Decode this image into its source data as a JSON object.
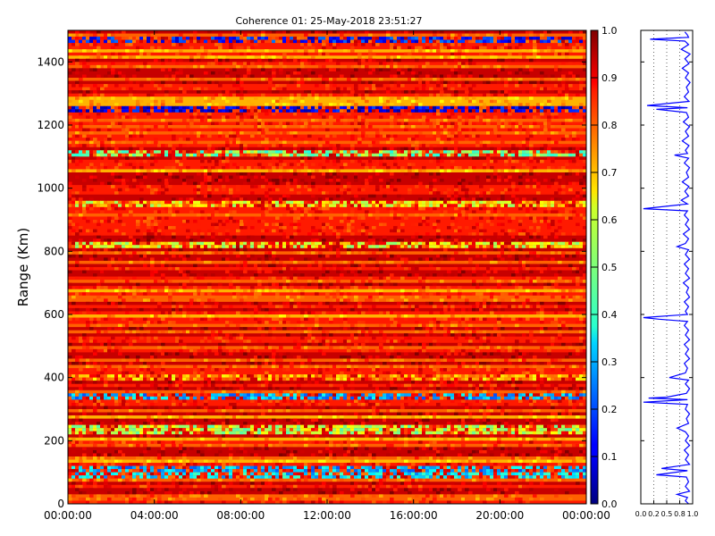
{
  "chart_data": [
    {
      "type": "heatmap",
      "title": "Coherence 01: 25-May-2018 23:51:27",
      "xlabel": "",
      "ylabel": "Range (Km)",
      "x_tick_labels": [
        "00:00:00",
        "04:00:00",
        "08:00:00",
        "12:00:00",
        "16:00:00",
        "20:00:00",
        "00:00:00"
      ],
      "x_range_hours": [
        0,
        24
      ],
      "y_ticks": [
        0,
        200,
        400,
        600,
        800,
        1000,
        1200,
        1400
      ],
      "y_range": [
        0,
        1500
      ],
      "colormap": "jet",
      "color_range": [
        0.0,
        1.0
      ],
      "colorbar_ticks": [
        0.0,
        0.1,
        0.2,
        0.3,
        0.4,
        0.5,
        0.6,
        0.7,
        0.8,
        0.9,
        1.0
      ],
      "colorbar_tick_labels": [
        "0.0",
        "0.1",
        "0.2",
        "0.3",
        "0.4",
        "0.5",
        "0.6",
        "0.7",
        "0.8",
        "0.9",
        "1.0"
      ],
      "bands": [
        {
          "range_km": [
            1465,
            1480
          ],
          "coherence": 0.15
        },
        {
          "range_km": [
            1243,
            1257
          ],
          "coherence": 0.1
        },
        {
          "range_km": [
            1100,
            1112
          ],
          "coherence": 0.5
        },
        {
          "range_km": [
            940,
            955
          ],
          "coherence": 0.62
        },
        {
          "range_km": [
            810,
            822
          ],
          "coherence": 0.6
        },
        {
          "range_km": [
            390,
            402
          ],
          "coherence": 0.7
        },
        {
          "range_km": [
            330,
            345
          ],
          "coherence": 0.3
        },
        {
          "range_km": [
            225,
            250
          ],
          "coherence": 0.55
        },
        {
          "range_km": [
            100,
            115
          ],
          "coherence": 0.3
        },
        {
          "range_km": [
            80,
            95
          ],
          "coherence": 0.35
        }
      ],
      "background_coherence": 0.85
    },
    {
      "type": "line",
      "title": "",
      "xlabel": "",
      "ylabel": "",
      "x_tick_labels": [
        "0.0",
        "0.2",
        "0.5",
        "0.8",
        "1.0"
      ],
      "x_ticks": [
        0.0,
        0.25,
        0.5,
        0.75,
        1.0
      ],
      "x_range": [
        0,
        1
      ],
      "y_range": [
        0,
        1500
      ],
      "grid": true,
      "series": [
        {
          "color": "#0000ff",
          "points": [
            [
              0.85,
              1495
            ],
            [
              0.9,
              1485
            ],
            [
              0.92,
              1478
            ],
            [
              0.18,
              1472
            ],
            [
              0.85,
              1466
            ],
            [
              0.92,
              1455
            ],
            [
              0.78,
              1440
            ],
            [
              0.95,
              1425
            ],
            [
              0.85,
              1410
            ],
            [
              0.93,
              1395
            ],
            [
              0.8,
              1380
            ],
            [
              0.92,
              1365
            ],
            [
              0.86,
              1350
            ],
            [
              0.95,
              1335
            ],
            [
              0.88,
              1320
            ],
            [
              0.92,
              1305
            ],
            [
              0.84,
              1290
            ],
            [
              0.93,
              1275
            ],
            [
              0.12,
              1262
            ],
            [
              0.9,
              1255
            ],
            [
              0.3,
              1250
            ],
            [
              0.88,
              1240
            ],
            [
              0.92,
              1225
            ],
            [
              0.82,
              1210
            ],
            [
              0.94,
              1195
            ],
            [
              0.86,
              1180
            ],
            [
              0.92,
              1165
            ],
            [
              0.8,
              1150
            ],
            [
              0.93,
              1135
            ],
            [
              0.86,
              1120
            ],
            [
              0.9,
              1110
            ],
            [
              0.65,
              1105
            ],
            [
              0.92,
              1095
            ],
            [
              0.84,
              1080
            ],
            [
              0.94,
              1065
            ],
            [
              0.88,
              1050
            ],
            [
              0.92,
              1035
            ],
            [
              0.8,
              1020
            ],
            [
              0.93,
              1005
            ],
            [
              0.85,
              990
            ],
            [
              0.92,
              975
            ],
            [
              0.78,
              962
            ],
            [
              0.9,
              950
            ],
            [
              0.05,
              935
            ],
            [
              0.9,
              928
            ],
            [
              0.84,
              915
            ],
            [
              0.92,
              900
            ],
            [
              0.86,
              885
            ],
            [
              0.94,
              870
            ],
            [
              0.82,
              855
            ],
            [
              0.92,
              840
            ],
            [
              0.86,
              825
            ],
            [
              0.7,
              815
            ],
            [
              0.92,
              805
            ],
            [
              0.86,
              790
            ],
            [
              0.94,
              775
            ],
            [
              0.84,
              760
            ],
            [
              0.92,
              745
            ],
            [
              0.86,
              730
            ],
            [
              0.94,
              715
            ],
            [
              0.82,
              700
            ],
            [
              0.92,
              685
            ],
            [
              0.88,
              670
            ],
            [
              0.94,
              655
            ],
            [
              0.84,
              640
            ],
            [
              0.92,
              625
            ],
            [
              0.86,
              610
            ],
            [
              0.9,
              600
            ],
            [
              0.05,
              590
            ],
            [
              0.35,
              585
            ],
            [
              0.9,
              578
            ],
            [
              0.84,
              565
            ],
            [
              0.92,
              550
            ],
            [
              0.86,
              535
            ],
            [
              0.94,
              520
            ],
            [
              0.84,
              505
            ],
            [
              0.92,
              490
            ],
            [
              0.86,
              475
            ],
            [
              0.94,
              460
            ],
            [
              0.84,
              445
            ],
            [
              0.9,
              430
            ],
            [
              0.86,
              415
            ],
            [
              0.55,
              400
            ],
            [
              0.92,
              392
            ],
            [
              0.86,
              380
            ],
            [
              0.94,
              365
            ],
            [
              0.88,
              350
            ],
            [
              0.5,
              338
            ],
            [
              0.15,
              335
            ],
            [
              0.9,
              330
            ],
            [
              0.05,
              322
            ],
            [
              0.9,
              315
            ],
            [
              0.86,
              300
            ],
            [
              0.94,
              285
            ],
            [
              0.88,
              270
            ],
            [
              0.92,
              255
            ],
            [
              0.7,
              240
            ],
            [
              0.86,
              228
            ],
            [
              0.92,
              215
            ],
            [
              0.86,
              200
            ],
            [
              0.94,
              185
            ],
            [
              0.84,
              170
            ],
            [
              0.92,
              155
            ],
            [
              0.86,
              140
            ],
            [
              0.94,
              125
            ],
            [
              0.4,
              112
            ],
            [
              0.9,
              105
            ],
            [
              0.3,
              92
            ],
            [
              0.88,
              85
            ],
            [
              0.92,
              70
            ],
            [
              0.86,
              55
            ],
            [
              0.94,
              40
            ],
            [
              0.7,
              30
            ],
            [
              0.9,
              20
            ],
            [
              0.86,
              10
            ],
            [
              0.92,
              0
            ]
          ]
        }
      ]
    }
  ]
}
